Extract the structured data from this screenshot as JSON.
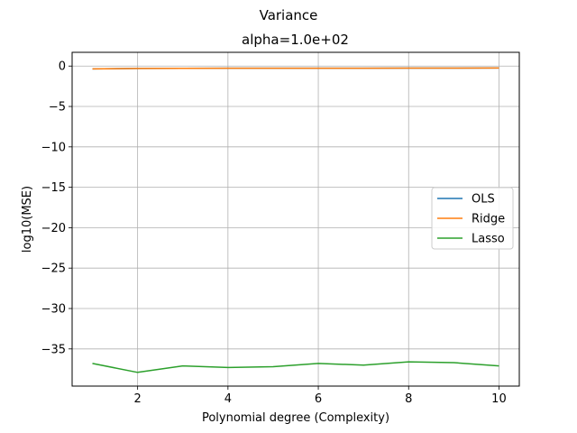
{
  "figure": {
    "suptitle": "Variance"
  },
  "chart_data": {
    "type": "line",
    "title": "alpha=1.0e+02",
    "xlabel": "Polynomial degree (Complexity)",
    "ylabel": "log10(MSE)",
    "xlim": [
      0.55,
      10.45
    ],
    "ylim": [
      -39.6,
      1.7
    ],
    "xticks": [
      2,
      4,
      6,
      8,
      10
    ],
    "xtick_labels": [
      "2",
      "4",
      "6",
      "8",
      "10"
    ],
    "yticks": [
      0,
      -5,
      -10,
      -15,
      -20,
      -25,
      -30,
      -35
    ],
    "ytick_labels": [
      "0",
      "−5",
      "−10",
      "−15",
      "−20",
      "−25",
      "−30",
      "−35"
    ],
    "grid": true,
    "legend_position": "center-right",
    "x": [
      1,
      2,
      3,
      4,
      5,
      6,
      7,
      8,
      9,
      10
    ],
    "series": [
      {
        "name": "OLS",
        "color": "#1f77b4",
        "values": [
          -0.35,
          -0.3,
          -0.28,
          -0.27,
          -0.27,
          -0.26,
          -0.26,
          -0.25,
          -0.25,
          -0.24
        ]
      },
      {
        "name": "Ridge",
        "color": "#ff7f0e",
        "values": [
          -0.35,
          -0.3,
          -0.28,
          -0.27,
          -0.27,
          -0.26,
          -0.26,
          -0.25,
          -0.25,
          -0.24
        ]
      },
      {
        "name": "Lasso",
        "color": "#2ca02c",
        "values": [
          -36.8,
          -37.9,
          -37.1,
          -37.3,
          -37.2,
          -36.8,
          -37.0,
          -36.6,
          -36.7,
          -37.1
        ]
      }
    ]
  }
}
